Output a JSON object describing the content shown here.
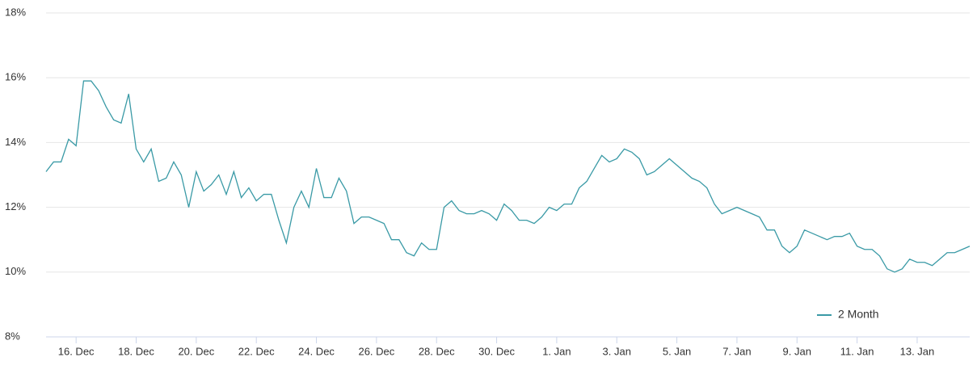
{
  "chart_data": {
    "type": "line",
    "categories": [
      null,
      null,
      null,
      null,
      "16. Dec",
      null,
      null,
      null,
      null,
      null,
      null,
      null,
      "18. Dec",
      null,
      null,
      null,
      null,
      null,
      null,
      null,
      "20. Dec",
      null,
      null,
      null,
      null,
      null,
      null,
      null,
      "22. Dec",
      null,
      null,
      null,
      null,
      null,
      null,
      null,
      "24. Dec",
      null,
      null,
      null,
      null,
      null,
      null,
      null,
      "26. Dec",
      null,
      null,
      null,
      null,
      null,
      null,
      null,
      "28. Dec",
      null,
      null,
      null,
      null,
      null,
      null,
      null,
      "30. Dec",
      null,
      null,
      null,
      null,
      null,
      null,
      null,
      "1. Jan",
      null,
      null,
      null,
      null,
      null,
      null,
      null,
      "3. Jan",
      null,
      null,
      null,
      null,
      null,
      null,
      null,
      "5. Jan",
      null,
      null,
      null,
      null,
      null,
      null,
      null,
      "7. Jan",
      null,
      null,
      null,
      null,
      null,
      null,
      null,
      "9. Jan",
      null,
      null,
      null,
      null,
      null,
      null,
      null,
      "11. Jan",
      null,
      null,
      null,
      null,
      null,
      null,
      null,
      "13. Jan",
      null,
      null,
      null,
      null,
      null,
      null,
      null
    ],
    "series": [
      {
        "name": "2 Month",
        "color": "#3a9aa6",
        "values": [
          13.1,
          13.4,
          13.4,
          14.1,
          13.9,
          15.9,
          15.9,
          15.6,
          15.1,
          14.7,
          14.6,
          15.5,
          13.8,
          13.4,
          13.8,
          12.8,
          12.9,
          13.4,
          13.0,
          12.0,
          13.1,
          12.5,
          12.7,
          13.0,
          12.4,
          13.1,
          12.3,
          12.6,
          12.2,
          12.4,
          12.4,
          11.6,
          10.9,
          12.0,
          12.5,
          12.0,
          13.2,
          12.3,
          12.3,
          12.9,
          12.5,
          11.5,
          11.7,
          11.7,
          11.6,
          11.5,
          11.0,
          11.0,
          10.6,
          10.5,
          10.9,
          10.7,
          10.7,
          12.0,
          12.2,
          11.9,
          11.8,
          11.8,
          11.9,
          11.8,
          11.6,
          12.1,
          11.9,
          11.6,
          11.6,
          11.5,
          11.7,
          12.0,
          11.9,
          12.1,
          12.1,
          12.6,
          12.8,
          13.2,
          13.6,
          13.4,
          13.5,
          13.8,
          13.7,
          13.5,
          13.0,
          13.1,
          13.3,
          13.5,
          13.3,
          13.1,
          12.9,
          12.8,
          12.6,
          12.1,
          11.8,
          11.9,
          12.0,
          11.9,
          11.8,
          11.7,
          11.3,
          11.3,
          10.8,
          10.6,
          10.8,
          11.3,
          11.2,
          11.1,
          11.0,
          11.1,
          11.1,
          11.2,
          10.8,
          10.7,
          10.7,
          10.5,
          10.1,
          10.0,
          10.1,
          10.4,
          10.3,
          10.3,
          10.2,
          10.4,
          10.6,
          10.6,
          10.7,
          10.8
        ]
      }
    ],
    "ylim": [
      8,
      18
    ],
    "yticks": [
      {
        "value": 8,
        "label": "8%"
      },
      {
        "value": 10,
        "label": "10%"
      },
      {
        "value": 12,
        "label": "12%"
      },
      {
        "value": 14,
        "label": "14%"
      },
      {
        "value": 16,
        "label": "16%"
      },
      {
        "value": 18,
        "label": "18%"
      }
    ],
    "grid": true,
    "legend": "bottom-right"
  }
}
